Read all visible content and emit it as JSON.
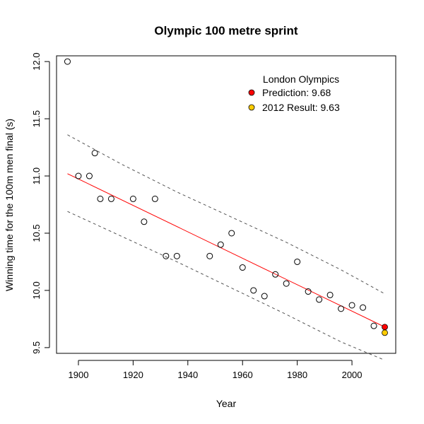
{
  "chart_data": {
    "type": "scatter",
    "title": "Olympic 100 metre sprint",
    "xlabel": "Year",
    "ylabel": "Winning time for the 100m men final (s)",
    "xlim": [
      1892,
      2016
    ],
    "ylim": [
      9.45,
      12.05
    ],
    "x_ticks": [
      1900,
      1920,
      1940,
      1960,
      1980,
      2000
    ],
    "x_tick_labels": [
      "1900",
      "1920",
      "1940",
      "1960",
      "1980",
      "2000"
    ],
    "y_ticks": [
      9.5,
      10.0,
      10.5,
      11.0,
      11.5,
      12.0
    ],
    "y_tick_labels": [
      "9.5",
      "10.0",
      "10.5",
      "11.0",
      "11.5",
      "12.0"
    ],
    "grid": false,
    "legend_position": "top-right",
    "legend_title": "London Olympics",
    "series": [
      {
        "style": "open-circle",
        "color": "#000000",
        "x": [
          1896,
          1900,
          1904,
          1906,
          1908,
          1912,
          1920,
          1924,
          1928,
          1932,
          1936,
          1948,
          1952,
          1956,
          1960,
          1964,
          1968,
          1972,
          1976,
          1980,
          1984,
          1988,
          1992,
          1996,
          2000,
          2004,
          2008
        ],
        "y": [
          12.0,
          11.0,
          11.0,
          11.2,
          10.8,
          10.8,
          10.8,
          10.6,
          10.8,
          10.3,
          10.3,
          10.3,
          10.4,
          10.5,
          10.2,
          10.0,
          9.95,
          10.14,
          10.06,
          10.25,
          9.99,
          9.92,
          9.96,
          9.84,
          9.87,
          9.85,
          9.69
        ]
      },
      {
        "style": "line",
        "color": "#ff0000",
        "x": [
          1896,
          2012
        ],
        "y": [
          11.02,
          9.68
        ]
      },
      {
        "style": "dashed-line",
        "color": "#555555",
        "x": [
          1896,
          1916,
          1936,
          1956,
          1976,
          1996,
          2012
        ],
        "y": [
          11.36,
          11.1,
          10.86,
          10.64,
          10.42,
          10.18,
          9.97
        ]
      },
      {
        "style": "dashed-line",
        "color": "#555555",
        "x": [
          1896,
          1916,
          1936,
          1956,
          1976,
          1996,
          2012
        ],
        "y": [
          10.69,
          10.47,
          10.25,
          10.02,
          9.79,
          9.55,
          9.39
        ]
      },
      {
        "name": "Prediction:  9.68",
        "style": "filled-circle",
        "color": "#ff0000",
        "x": [
          2012
        ],
        "y": [
          9.68
        ]
      },
      {
        "name": "2012 Result: 9.63",
        "style": "filled-circle",
        "color": "#ffcc00",
        "x": [
          2012
        ],
        "y": [
          9.63
        ]
      }
    ]
  }
}
